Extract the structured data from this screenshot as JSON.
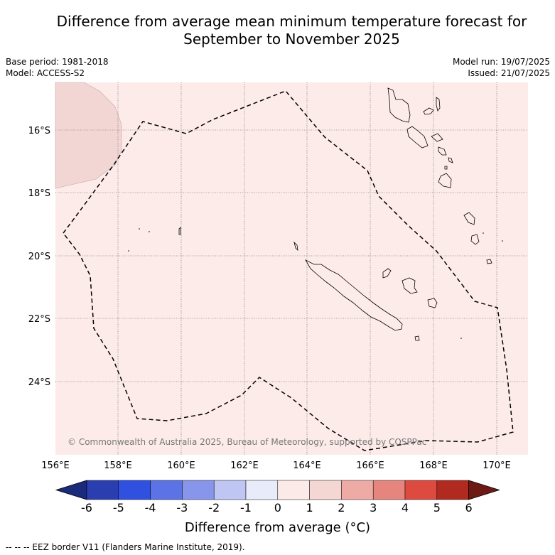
{
  "title_line1": "Difference from average mean minimum temperature forecast for",
  "title_line2": "September to November 2025",
  "base_period": "Base period: 1981-2018",
  "model": "Model: ACCESS-S2",
  "model_run": "Model run: 19/07/2025",
  "issued": "Issued: 21/07/2025",
  "copyright": "© Commonwealth of Australia 2025, Bureau of Meteorology, supported by COSPPac",
  "lat_labels": [
    "16°S",
    "18°S",
    "20°S",
    "22°S",
    "24°S"
  ],
  "lon_labels": [
    "156°E",
    "158°E",
    "160°E",
    "162°E",
    "164°E",
    "166°E",
    "168°E",
    "170°E"
  ],
  "colorbar": {
    "title": "Difference from average (°C)",
    "ticks": [
      "-6",
      "-5",
      "-4",
      "-3",
      "-2",
      "-1",
      "0",
      "1",
      "2",
      "3",
      "4",
      "5",
      "6"
    ],
    "colors": [
      "#1b2a7a",
      "#2a3eb0",
      "#3050e0",
      "#5c73e6",
      "#8796ea",
      "#c0c6f3",
      "#e8ebf9",
      "#fceae8",
      "#f4d6d3",
      "#eeaba5",
      "#e6857d",
      "#dc4a40",
      "#b02a20",
      "#6e1a14"
    ]
  },
  "map_fill": "#fcebe9",
  "warm_patch_fill": "#f2d6d4",
  "footer": "--  --  -- EEZ border V11 (Flanders Marine Institute, 2019)."
}
